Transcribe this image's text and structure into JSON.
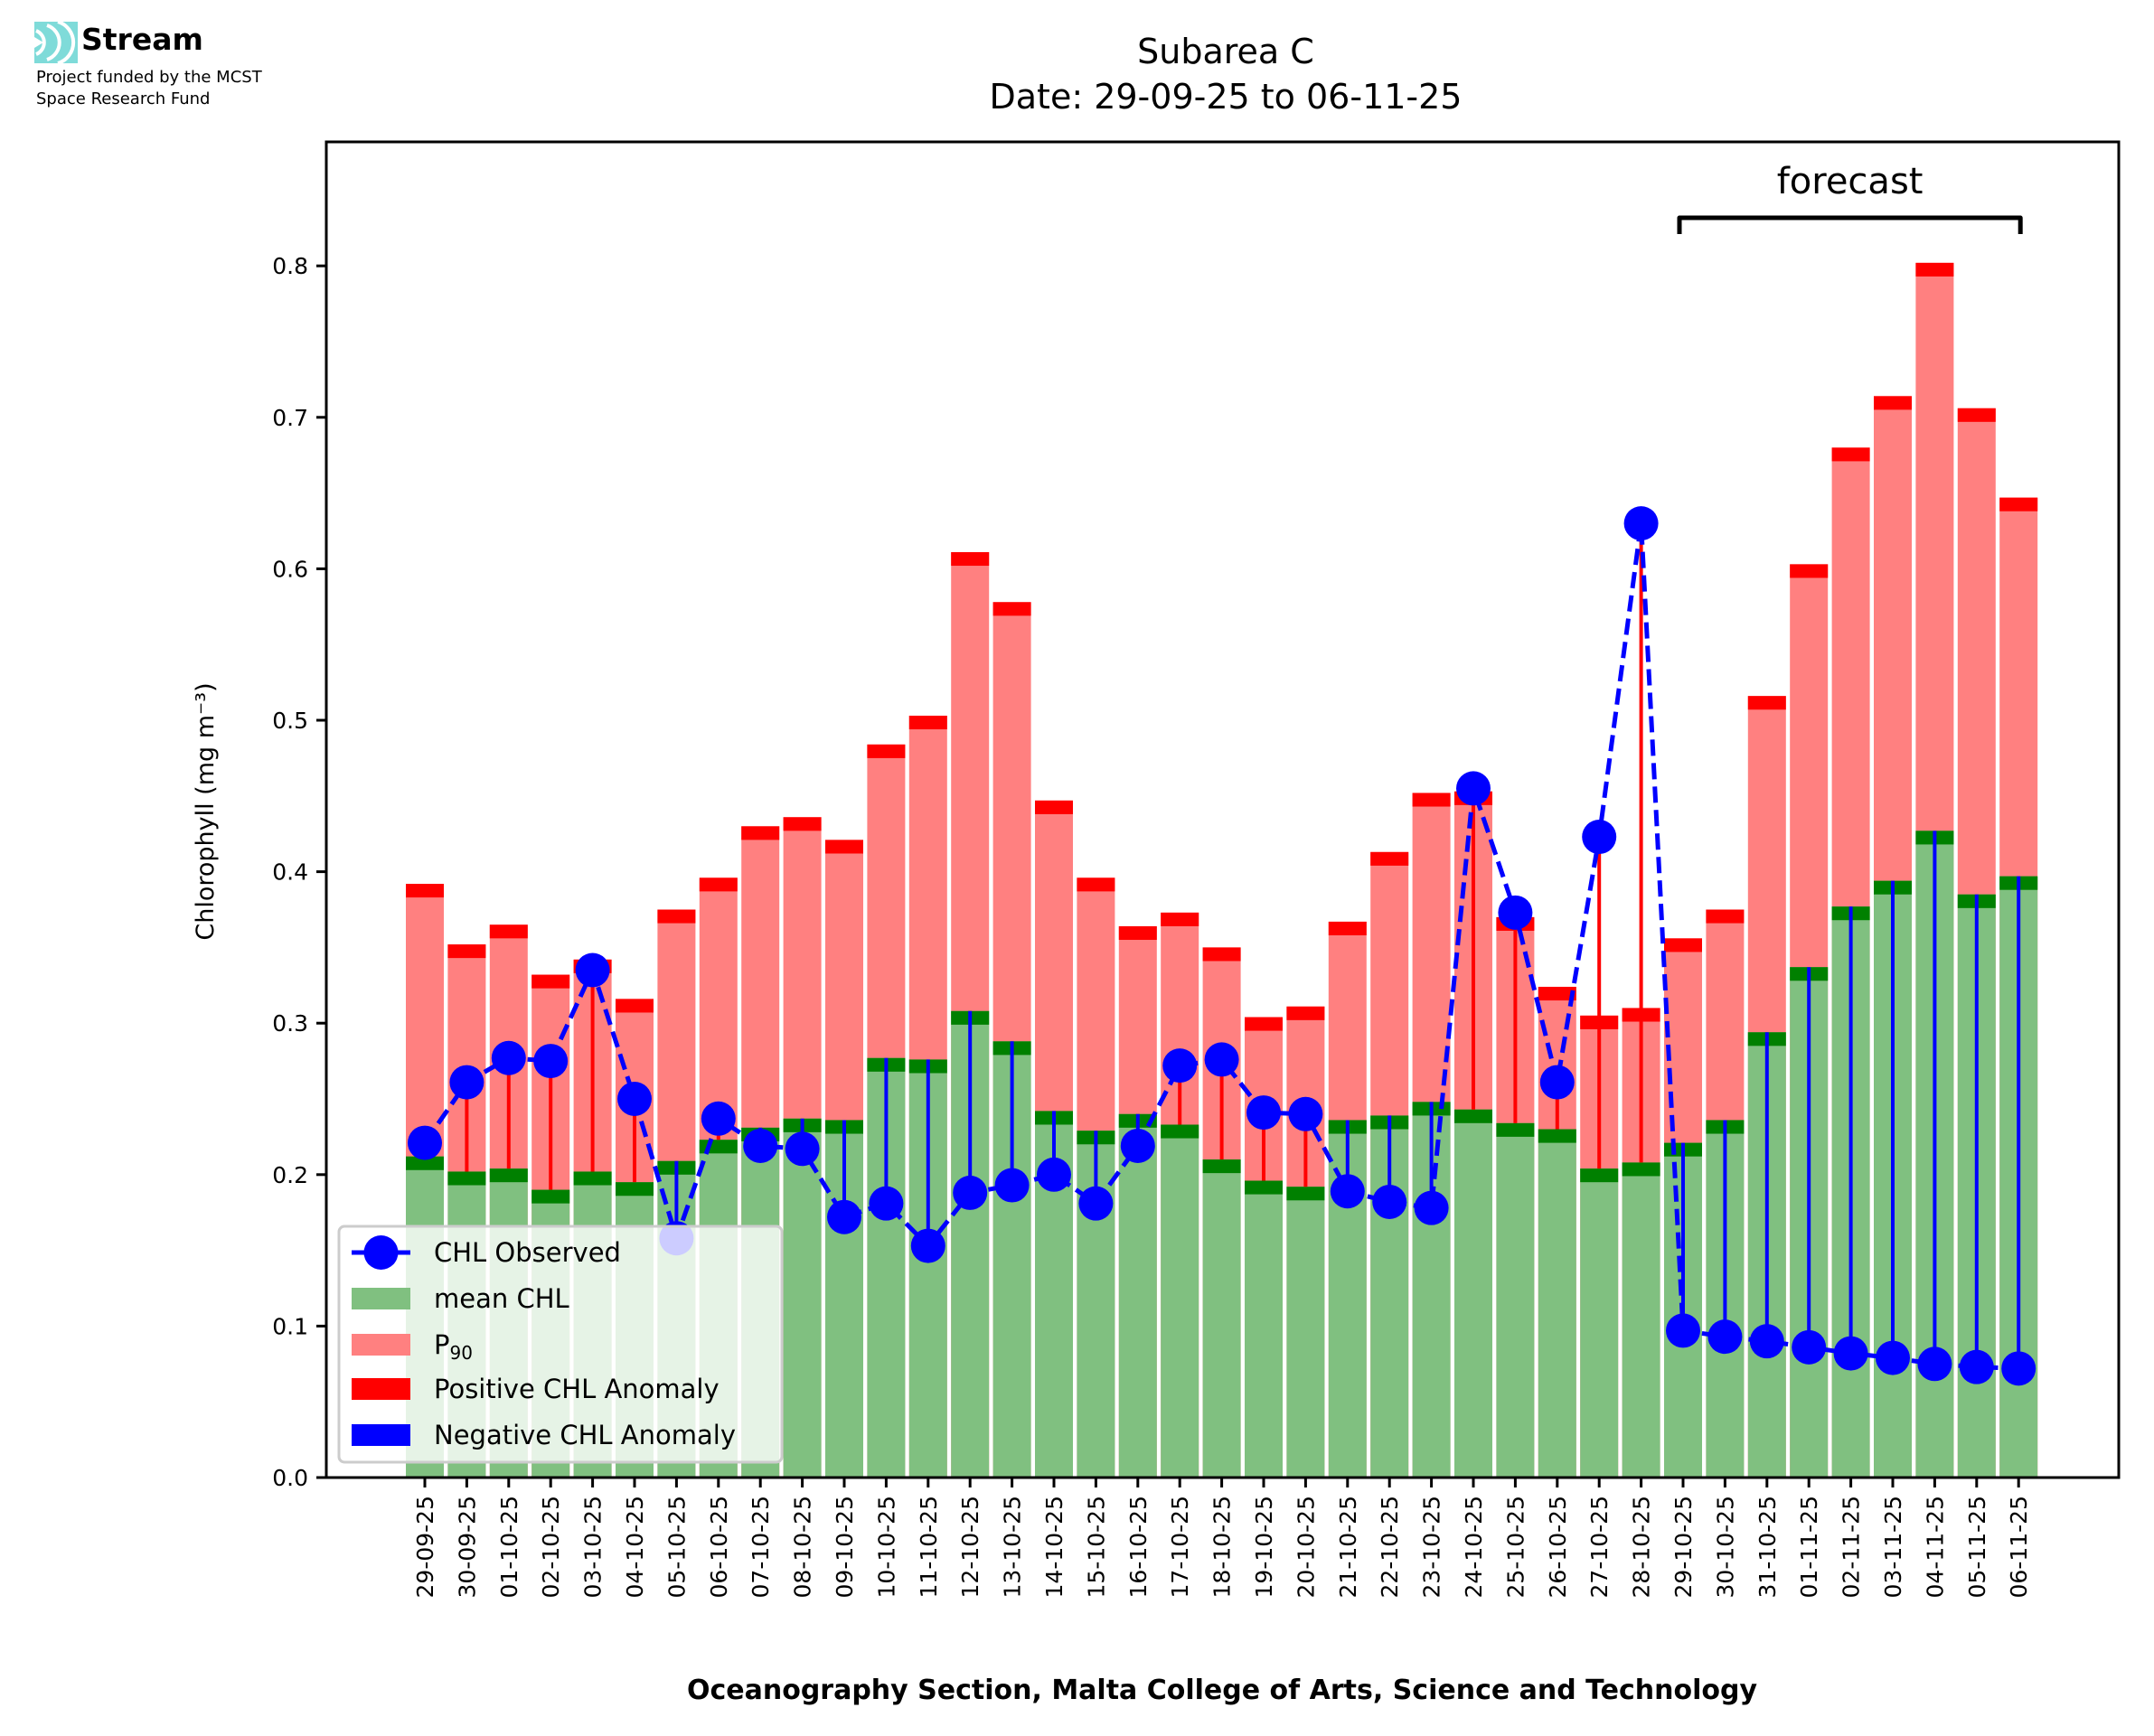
{
  "branding": {
    "name": "Stream",
    "subtitle_line1": "Project funded by the MCST",
    "subtitle_line2": "Space Research Fund",
    "logo_color": "#7fdbd9"
  },
  "colors": {
    "mean": "#80c080",
    "mean_cap": "#008000",
    "p90": "#ff8080",
    "p90_cap": "#ff0000",
    "observed": "#0000ff",
    "positive_anomaly": "#ff0000",
    "negative_anomaly": "#0000ff"
  },
  "chart_data": {
    "type": "bar",
    "title": "Subarea C",
    "subtitle": "Date: 29-09-25 to 06-11-25",
    "xlabel": "Oceanography Section, Malta College of Arts, Science and Technology",
    "ylabel": "Chlorophyll (mg m⁻³)",
    "ylim": [
      0,
      0.88
    ],
    "yticks": [
      0.0,
      0.1,
      0.2,
      0.3,
      0.4,
      0.5,
      0.6,
      0.7,
      0.8
    ],
    "ytick_labels": [
      "0.0",
      "0.1",
      "0.2",
      "0.3",
      "0.4",
      "0.5",
      "0.6",
      "0.7",
      "0.8"
    ],
    "grid": false,
    "legend_position": "lower-left",
    "annotation": {
      "text": "forecast",
      "from": "29-10-25",
      "to": "06-11-25"
    },
    "categories": [
      "29-09-25",
      "30-09-25",
      "01-10-25",
      "02-10-25",
      "03-10-25",
      "04-10-25",
      "05-10-25",
      "06-10-25",
      "07-10-25",
      "08-10-25",
      "09-10-25",
      "10-10-25",
      "11-10-25",
      "12-10-25",
      "13-10-25",
      "14-10-25",
      "15-10-25",
      "16-10-25",
      "17-10-25",
      "18-10-25",
      "19-10-25",
      "20-10-25",
      "21-10-25",
      "22-10-25",
      "23-10-25",
      "24-10-25",
      "25-10-25",
      "26-10-25",
      "27-10-25",
      "28-10-25",
      "29-10-25",
      "30-10-25",
      "31-10-25",
      "01-11-25",
      "02-11-25",
      "03-11-25",
      "04-11-25",
      "05-11-25",
      "06-11-25"
    ],
    "series": [
      {
        "name": "CHL Observed",
        "kind": "line-dashed-markers",
        "values": [
          0.221,
          0.261,
          0.277,
          0.275,
          0.335,
          0.25,
          0.158,
          0.237,
          0.219,
          0.217,
          0.172,
          0.181,
          0.153,
          0.188,
          0.193,
          0.2,
          0.181,
          0.219,
          0.272,
          0.276,
          0.241,
          0.24,
          0.189,
          0.182,
          0.178,
          0.455,
          0.373,
          0.261,
          0.423,
          0.63,
          0.097,
          0.093,
          0.09,
          0.086,
          0.082,
          0.079,
          0.075,
          0.073,
          0.072
        ]
      },
      {
        "name": "mean CHL",
        "kind": "bar",
        "values": [
          0.212,
          0.202,
          0.204,
          0.19,
          0.202,
          0.195,
          0.209,
          0.223,
          0.231,
          0.237,
          0.236,
          0.277,
          0.276,
          0.308,
          0.288,
          0.242,
          0.229,
          0.24,
          0.233,
          0.21,
          0.196,
          0.192,
          0.236,
          0.239,
          0.248,
          0.243,
          0.234,
          0.23,
          0.204,
          0.208,
          0.221,
          0.236,
          0.294,
          0.337,
          0.377,
          0.394,
          0.427,
          0.385,
          0.397
        ]
      },
      {
        "name": "P₉₀",
        "kind": "bar",
        "values": [
          0.392,
          0.352,
          0.365,
          0.332,
          0.342,
          0.316,
          0.375,
          0.396,
          0.43,
          0.436,
          0.421,
          0.484,
          0.503,
          0.611,
          0.578,
          0.447,
          0.396,
          0.364,
          0.373,
          0.35,
          0.304,
          0.311,
          0.367,
          0.413,
          0.452,
          0.453,
          0.37,
          0.324,
          0.305,
          0.31,
          0.356,
          0.375,
          0.516,
          0.603,
          0.68,
          0.714,
          0.802,
          0.706,
          0.647
        ]
      }
    ],
    "legend": [
      {
        "label": "CHL Observed",
        "kind": "line-marker"
      },
      {
        "label": "mean CHL",
        "kind": "patch-mean"
      },
      {
        "label": "P",
        "sub": "90",
        "kind": "patch-p90"
      },
      {
        "label": "Positive CHL Anomaly",
        "kind": "patch-pos"
      },
      {
        "label": "Negative CHL Anomaly",
        "kind": "patch-neg"
      }
    ]
  }
}
